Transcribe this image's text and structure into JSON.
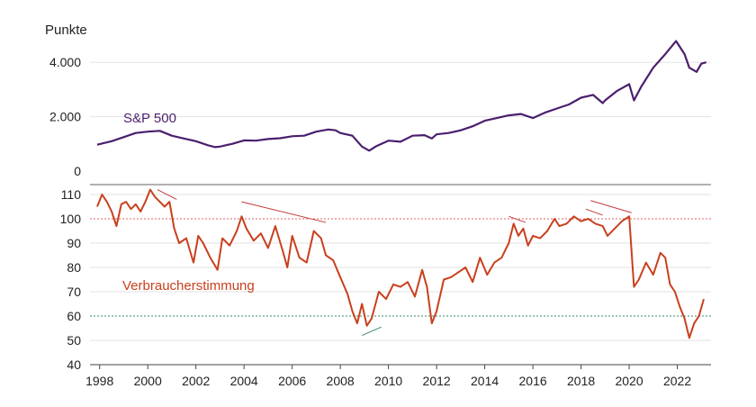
{
  "chart_data": [
    {
      "type": "line",
      "title": "Punkte",
      "ylim": [
        0,
        5000
      ],
      "yticks": [
        "4.000",
        "2.000",
        "0"
      ],
      "ytick_values": [
        4000,
        2000,
        0
      ],
      "series": [
        {
          "name": "S&P 500",
          "color": "#4a1f6e",
          "x": [
            1997.9,
            1998.5,
            1999.0,
            1999.5,
            2000.0,
            2000.5,
            2001.0,
            2001.5,
            2002.0,
            2002.5,
            2002.8,
            2003.0,
            2003.5,
            2004.0,
            2004.5,
            2005.0,
            2005.5,
            2006.0,
            2006.5,
            2007.0,
            2007.5,
            2007.8,
            2008.0,
            2008.5,
            2008.9,
            2009.2,
            2009.5,
            2010.0,
            2010.5,
            2011.0,
            2011.5,
            2011.8,
            2012.0,
            2012.5,
            2013.0,
            2013.5,
            2014.0,
            2014.5,
            2015.0,
            2015.5,
            2016.0,
            2016.5,
            2017.0,
            2017.5,
            2018.0,
            2018.5,
            2018.9,
            2019.0,
            2019.5,
            2020.0,
            2020.2,
            2020.5,
            2021.0,
            2021.5,
            2021.95,
            2022.3,
            2022.5,
            2022.8,
            2023.0,
            2023.2
          ],
          "values": [
            970,
            1100,
            1250,
            1400,
            1450,
            1480,
            1300,
            1200,
            1100,
            950,
            880,
            900,
            1000,
            1130,
            1120,
            1180,
            1210,
            1280,
            1300,
            1450,
            1530,
            1500,
            1400,
            1300,
            900,
            750,
            920,
            1120,
            1080,
            1300,
            1320,
            1200,
            1350,
            1400,
            1500,
            1650,
            1850,
            1950,
            2050,
            2100,
            1950,
            2150,
            2300,
            2450,
            2700,
            2800,
            2500,
            2600,
            2950,
            3200,
            2600,
            3100,
            3800,
            4300,
            4780,
            4300,
            3800,
            3650,
            3950,
            4000
          ]
        }
      ],
      "labels": [
        "S&P 500"
      ]
    },
    {
      "type": "line",
      "ylim": [
        40,
        115
      ],
      "yticks": [
        "110",
        "100",
        "90",
        "80",
        "70",
        "60",
        "50",
        "40"
      ],
      "ytick_values": [
        110,
        100,
        90,
        80,
        70,
        60,
        50,
        40
      ],
      "xticks": [
        "1998",
        "2000",
        "2002",
        "2004",
        "2006",
        "2008",
        "2010",
        "2012",
        "2014",
        "2016",
        "2018",
        "2020",
        "2022"
      ],
      "xtick_values": [
        1998,
        2000,
        2002,
        2004,
        2006,
        2008,
        2010,
        2012,
        2014,
        2016,
        2018,
        2020,
        2022
      ],
      "reference_lines": [
        {
          "value": 100,
          "color": "#e06060"
        },
        {
          "value": 60,
          "color": "#3a8a6a"
        }
      ],
      "trend_segments": [
        {
          "x": [
            2000.4,
            2001.2
          ],
          "y": [
            112,
            108
          ],
          "color": "#c43a3a"
        },
        {
          "x": [
            2003.9,
            2007.4
          ],
          "y": [
            107,
            98.5
          ],
          "color": "#c43a3a"
        },
        {
          "x": [
            2008.9,
            2009.7
          ],
          "y": [
            52,
            55.5
          ],
          "color": "#3a8a6a"
        },
        {
          "x": [
            2015.0,
            2015.7
          ],
          "y": [
            101,
            98.5
          ],
          "color": "#c43a3a"
        },
        {
          "x": [
            2018.2,
            2018.9
          ],
          "y": [
            104,
            101.5
          ],
          "color": "#c43a3a"
        },
        {
          "x": [
            2018.4,
            2020.1
          ],
          "y": [
            107.5,
            102.5
          ],
          "color": "#c43a3a"
        }
      ],
      "series": [
        {
          "name": "Verbraucherstimmung",
          "color": "#c9401e",
          "x": [
            1997.9,
            1998.1,
            1998.3,
            1998.5,
            1998.7,
            1998.9,
            1999.1,
            1999.3,
            1999.5,
            1999.7,
            1999.9,
            2000.1,
            2000.3,
            2000.5,
            2000.7,
            2000.9,
            2001.1,
            2001.3,
            2001.6,
            2001.9,
            2002.1,
            2002.3,
            2002.6,
            2002.9,
            2003.1,
            2003.4,
            2003.7,
            2003.9,
            2004.1,
            2004.4,
            2004.7,
            2005.0,
            2005.3,
            2005.6,
            2005.8,
            2006.0,
            2006.3,
            2006.6,
            2006.9,
            2007.2,
            2007.4,
            2007.7,
            2008.0,
            2008.3,
            2008.5,
            2008.7,
            2008.9,
            2009.1,
            2009.3,
            2009.6,
            2009.9,
            2010.2,
            2010.5,
            2010.8,
            2011.1,
            2011.4,
            2011.6,
            2011.8,
            2012.0,
            2012.3,
            2012.6,
            2012.9,
            2013.2,
            2013.5,
            2013.8,
            2014.1,
            2014.4,
            2014.7,
            2015.0,
            2015.2,
            2015.4,
            2015.6,
            2015.8,
            2016.0,
            2016.3,
            2016.6,
            2016.9,
            2017.1,
            2017.4,
            2017.7,
            2018.0,
            2018.3,
            2018.6,
            2018.9,
            2019.1,
            2019.4,
            2019.7,
            2020.0,
            2020.2,
            2020.4,
            2020.7,
            2021.0,
            2021.3,
            2021.5,
            2021.7,
            2021.9,
            2022.1,
            2022.3,
            2022.5,
            2022.7,
            2022.9,
            2023.1
          ],
          "values": [
            105,
            110,
            107,
            103,
            97,
            106,
            107,
            104,
            106,
            103,
            107,
            112,
            109,
            107,
            105,
            107,
            96,
            90,
            92,
            82,
            93,
            90,
            84,
            79,
            92,
            89,
            95,
            101,
            96,
            91,
            94,
            88,
            97,
            87,
            80,
            93,
            84,
            82,
            95,
            92,
            85,
            83,
            76,
            69,
            62,
            57,
            65,
            56,
            59,
            70,
            67,
            73,
            72,
            74,
            68,
            79,
            72,
            57,
            62,
            75,
            76,
            78,
            80,
            74,
            84,
            77,
            82,
            84,
            90,
            98,
            93,
            96,
            89,
            93,
            92,
            95,
            100,
            97,
            98,
            101,
            99,
            100,
            98,
            97,
            93,
            96,
            99,
            101,
            72,
            75,
            82,
            77,
            86,
            84,
            73,
            70,
            64,
            59,
            51,
            57,
            60,
            67
          ]
        }
      ],
      "labels": [
        "Verbraucherstimmung"
      ]
    }
  ]
}
